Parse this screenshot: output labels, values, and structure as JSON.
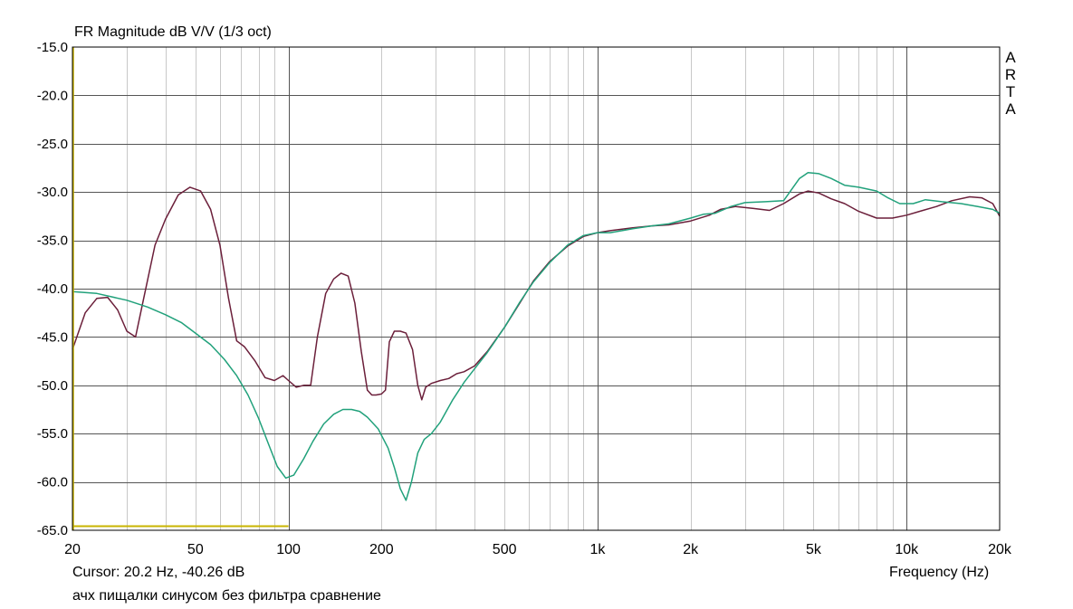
{
  "chart_data": {
    "type": "line",
    "title": "FR Magnitude dB V/V (1/3 oct)",
    "xlabel": "Frequency (Hz)",
    "ylabel": "",
    "x_scale": "log",
    "xlim": [
      20,
      20000
    ],
    "ylim": [
      -65,
      -15
    ],
    "grid": true,
    "x_tick_labels": [
      {
        "value": 20,
        "label": "20"
      },
      {
        "value": 50,
        "label": "50"
      },
      {
        "value": 100,
        "label": "100"
      },
      {
        "value": 200,
        "label": "200"
      },
      {
        "value": 500,
        "label": "500"
      },
      {
        "value": 1000,
        "label": "1k"
      },
      {
        "value": 2000,
        "label": "2k"
      },
      {
        "value": 5000,
        "label": "5k"
      },
      {
        "value": 10000,
        "label": "10k"
      },
      {
        "value": 20000,
        "label": "20k"
      }
    ],
    "y_tick_labels": [
      "-15.0",
      "-20.0",
      "-25.0",
      "-30.0",
      "-35.0",
      "-40.0",
      "-45.0",
      "-50.0",
      "-55.0",
      "-60.0",
      "-65.0"
    ],
    "series": [
      {
        "color": "#6b1f3a",
        "points": [
          [
            20,
            -46.3
          ],
          [
            22,
            -42.5
          ],
          [
            24,
            -41.0
          ],
          [
            26,
            -40.9
          ],
          [
            28,
            -42.2
          ],
          [
            30,
            -44.4
          ],
          [
            32,
            -45.0
          ],
          [
            34,
            -41.0
          ],
          [
            37,
            -35.5
          ],
          [
            40,
            -32.8
          ],
          [
            44,
            -30.3
          ],
          [
            48,
            -29.5
          ],
          [
            52,
            -29.9
          ],
          [
            56,
            -31.8
          ],
          [
            60,
            -35.5
          ],
          [
            64,
            -41.0
          ],
          [
            68,
            -45.4
          ],
          [
            72,
            -46.0
          ],
          [
            78,
            -47.5
          ],
          [
            84,
            -49.2
          ],
          [
            90,
            -49.5
          ],
          [
            96,
            -49.0
          ],
          [
            100,
            -49.5
          ],
          [
            106,
            -50.2
          ],
          [
            112,
            -50.0
          ],
          [
            118,
            -50.0
          ],
          [
            124,
            -45.0
          ],
          [
            132,
            -40.5
          ],
          [
            140,
            -39.0
          ],
          [
            148,
            -38.4
          ],
          [
            156,
            -38.7
          ],
          [
            164,
            -41.5
          ],
          [
            172,
            -46.5
          ],
          [
            180,
            -50.5
          ],
          [
            186,
            -51.0
          ],
          [
            192,
            -51.0
          ],
          [
            200,
            -50.9
          ],
          [
            206,
            -50.5
          ],
          [
            212,
            -45.5
          ],
          [
            220,
            -44.4
          ],
          [
            230,
            -44.4
          ],
          [
            240,
            -44.6
          ],
          [
            252,
            -46.3
          ],
          [
            262,
            -50.0
          ],
          [
            270,
            -51.5
          ],
          [
            278,
            -50.2
          ],
          [
            290,
            -49.8
          ],
          [
            310,
            -49.5
          ],
          [
            330,
            -49.3
          ],
          [
            350,
            -48.8
          ],
          [
            370,
            -48.6
          ],
          [
            400,
            -48.0
          ],
          [
            440,
            -46.5
          ],
          [
            500,
            -44.0
          ],
          [
            560,
            -41.5
          ],
          [
            620,
            -39.2
          ],
          [
            700,
            -37.2
          ],
          [
            800,
            -35.6
          ],
          [
            900,
            -34.6
          ],
          [
            1000,
            -34.2
          ],
          [
            1100,
            -34.0
          ],
          [
            1300,
            -33.7
          ],
          [
            1500,
            -33.5
          ],
          [
            1700,
            -33.4
          ],
          [
            2000,
            -33.0
          ],
          [
            2300,
            -32.4
          ],
          [
            2500,
            -31.8
          ],
          [
            2800,
            -31.5
          ],
          [
            3200,
            -31.7
          ],
          [
            3600,
            -31.9
          ],
          [
            4000,
            -31.2
          ],
          [
            4500,
            -30.2
          ],
          [
            4800,
            -29.9
          ],
          [
            5200,
            -30.1
          ],
          [
            5700,
            -30.7
          ],
          [
            6300,
            -31.2
          ],
          [
            7000,
            -32.0
          ],
          [
            8000,
            -32.7
          ],
          [
            9000,
            -32.7
          ],
          [
            10000,
            -32.4
          ],
          [
            11000,
            -32.0
          ],
          [
            12500,
            -31.5
          ],
          [
            14000,
            -30.9
          ],
          [
            16000,
            -30.5
          ],
          [
            17500,
            -30.6
          ],
          [
            19000,
            -31.2
          ],
          [
            20000,
            -32.5
          ]
        ]
      },
      {
        "color": "#21a17b",
        "points": [
          [
            20,
            -40.3
          ],
          [
            24,
            -40.5
          ],
          [
            30,
            -41.2
          ],
          [
            35,
            -41.9
          ],
          [
            40,
            -42.7
          ],
          [
            45,
            -43.5
          ],
          [
            50,
            -44.6
          ],
          [
            56,
            -45.8
          ],
          [
            62,
            -47.3
          ],
          [
            68,
            -49.0
          ],
          [
            74,
            -51.0
          ],
          [
            80,
            -53.4
          ],
          [
            86,
            -56.0
          ],
          [
            92,
            -58.4
          ],
          [
            98,
            -59.6
          ],
          [
            104,
            -59.3
          ],
          [
            112,
            -57.6
          ],
          [
            120,
            -55.8
          ],
          [
            130,
            -54.0
          ],
          [
            140,
            -53.0
          ],
          [
            150,
            -52.5
          ],
          [
            160,
            -52.5
          ],
          [
            170,
            -52.7
          ],
          [
            180,
            -53.3
          ],
          [
            195,
            -54.5
          ],
          [
            210,
            -56.5
          ],
          [
            220,
            -58.5
          ],
          [
            230,
            -60.7
          ],
          [
            240,
            -61.9
          ],
          [
            250,
            -60.0
          ],
          [
            262,
            -57.0
          ],
          [
            275,
            -55.6
          ],
          [
            290,
            -55.0
          ],
          [
            310,
            -53.8
          ],
          [
            340,
            -51.5
          ],
          [
            370,
            -49.7
          ],
          [
            400,
            -48.3
          ],
          [
            440,
            -46.6
          ],
          [
            500,
            -44.0
          ],
          [
            560,
            -41.4
          ],
          [
            620,
            -39.3
          ],
          [
            700,
            -37.3
          ],
          [
            800,
            -35.5
          ],
          [
            900,
            -34.5
          ],
          [
            1000,
            -34.2
          ],
          [
            1100,
            -34.2
          ],
          [
            1300,
            -33.8
          ],
          [
            1500,
            -33.5
          ],
          [
            1700,
            -33.3
          ],
          [
            2000,
            -32.7
          ],
          [
            2200,
            -32.3
          ],
          [
            2400,
            -32.2
          ],
          [
            2700,
            -31.5
          ],
          [
            3000,
            -31.1
          ],
          [
            3500,
            -31.0
          ],
          [
            4000,
            -30.9
          ],
          [
            4500,
            -28.6
          ],
          [
            4800,
            -28.0
          ],
          [
            5200,
            -28.1
          ],
          [
            5700,
            -28.6
          ],
          [
            6300,
            -29.3
          ],
          [
            7000,
            -29.5
          ],
          [
            8000,
            -29.9
          ],
          [
            8700,
            -30.6
          ],
          [
            9500,
            -31.2
          ],
          [
            10500,
            -31.2
          ],
          [
            11500,
            -30.8
          ],
          [
            13000,
            -31.0
          ],
          [
            15000,
            -31.2
          ],
          [
            17000,
            -31.5
          ],
          [
            19000,
            -31.8
          ],
          [
            20000,
            -32.2
          ]
        ]
      }
    ],
    "cursor_line_color": "#c8b400"
  },
  "labels": {
    "cursor_readout": "Cursor: 20.2 Hz, -40.26 dB",
    "x_axis_title": "Frequency (Hz)",
    "caption": "ачх пищалки  синусом без фильтра сравнение",
    "brand_letters": [
      "A",
      "R",
      "T",
      "A"
    ]
  }
}
